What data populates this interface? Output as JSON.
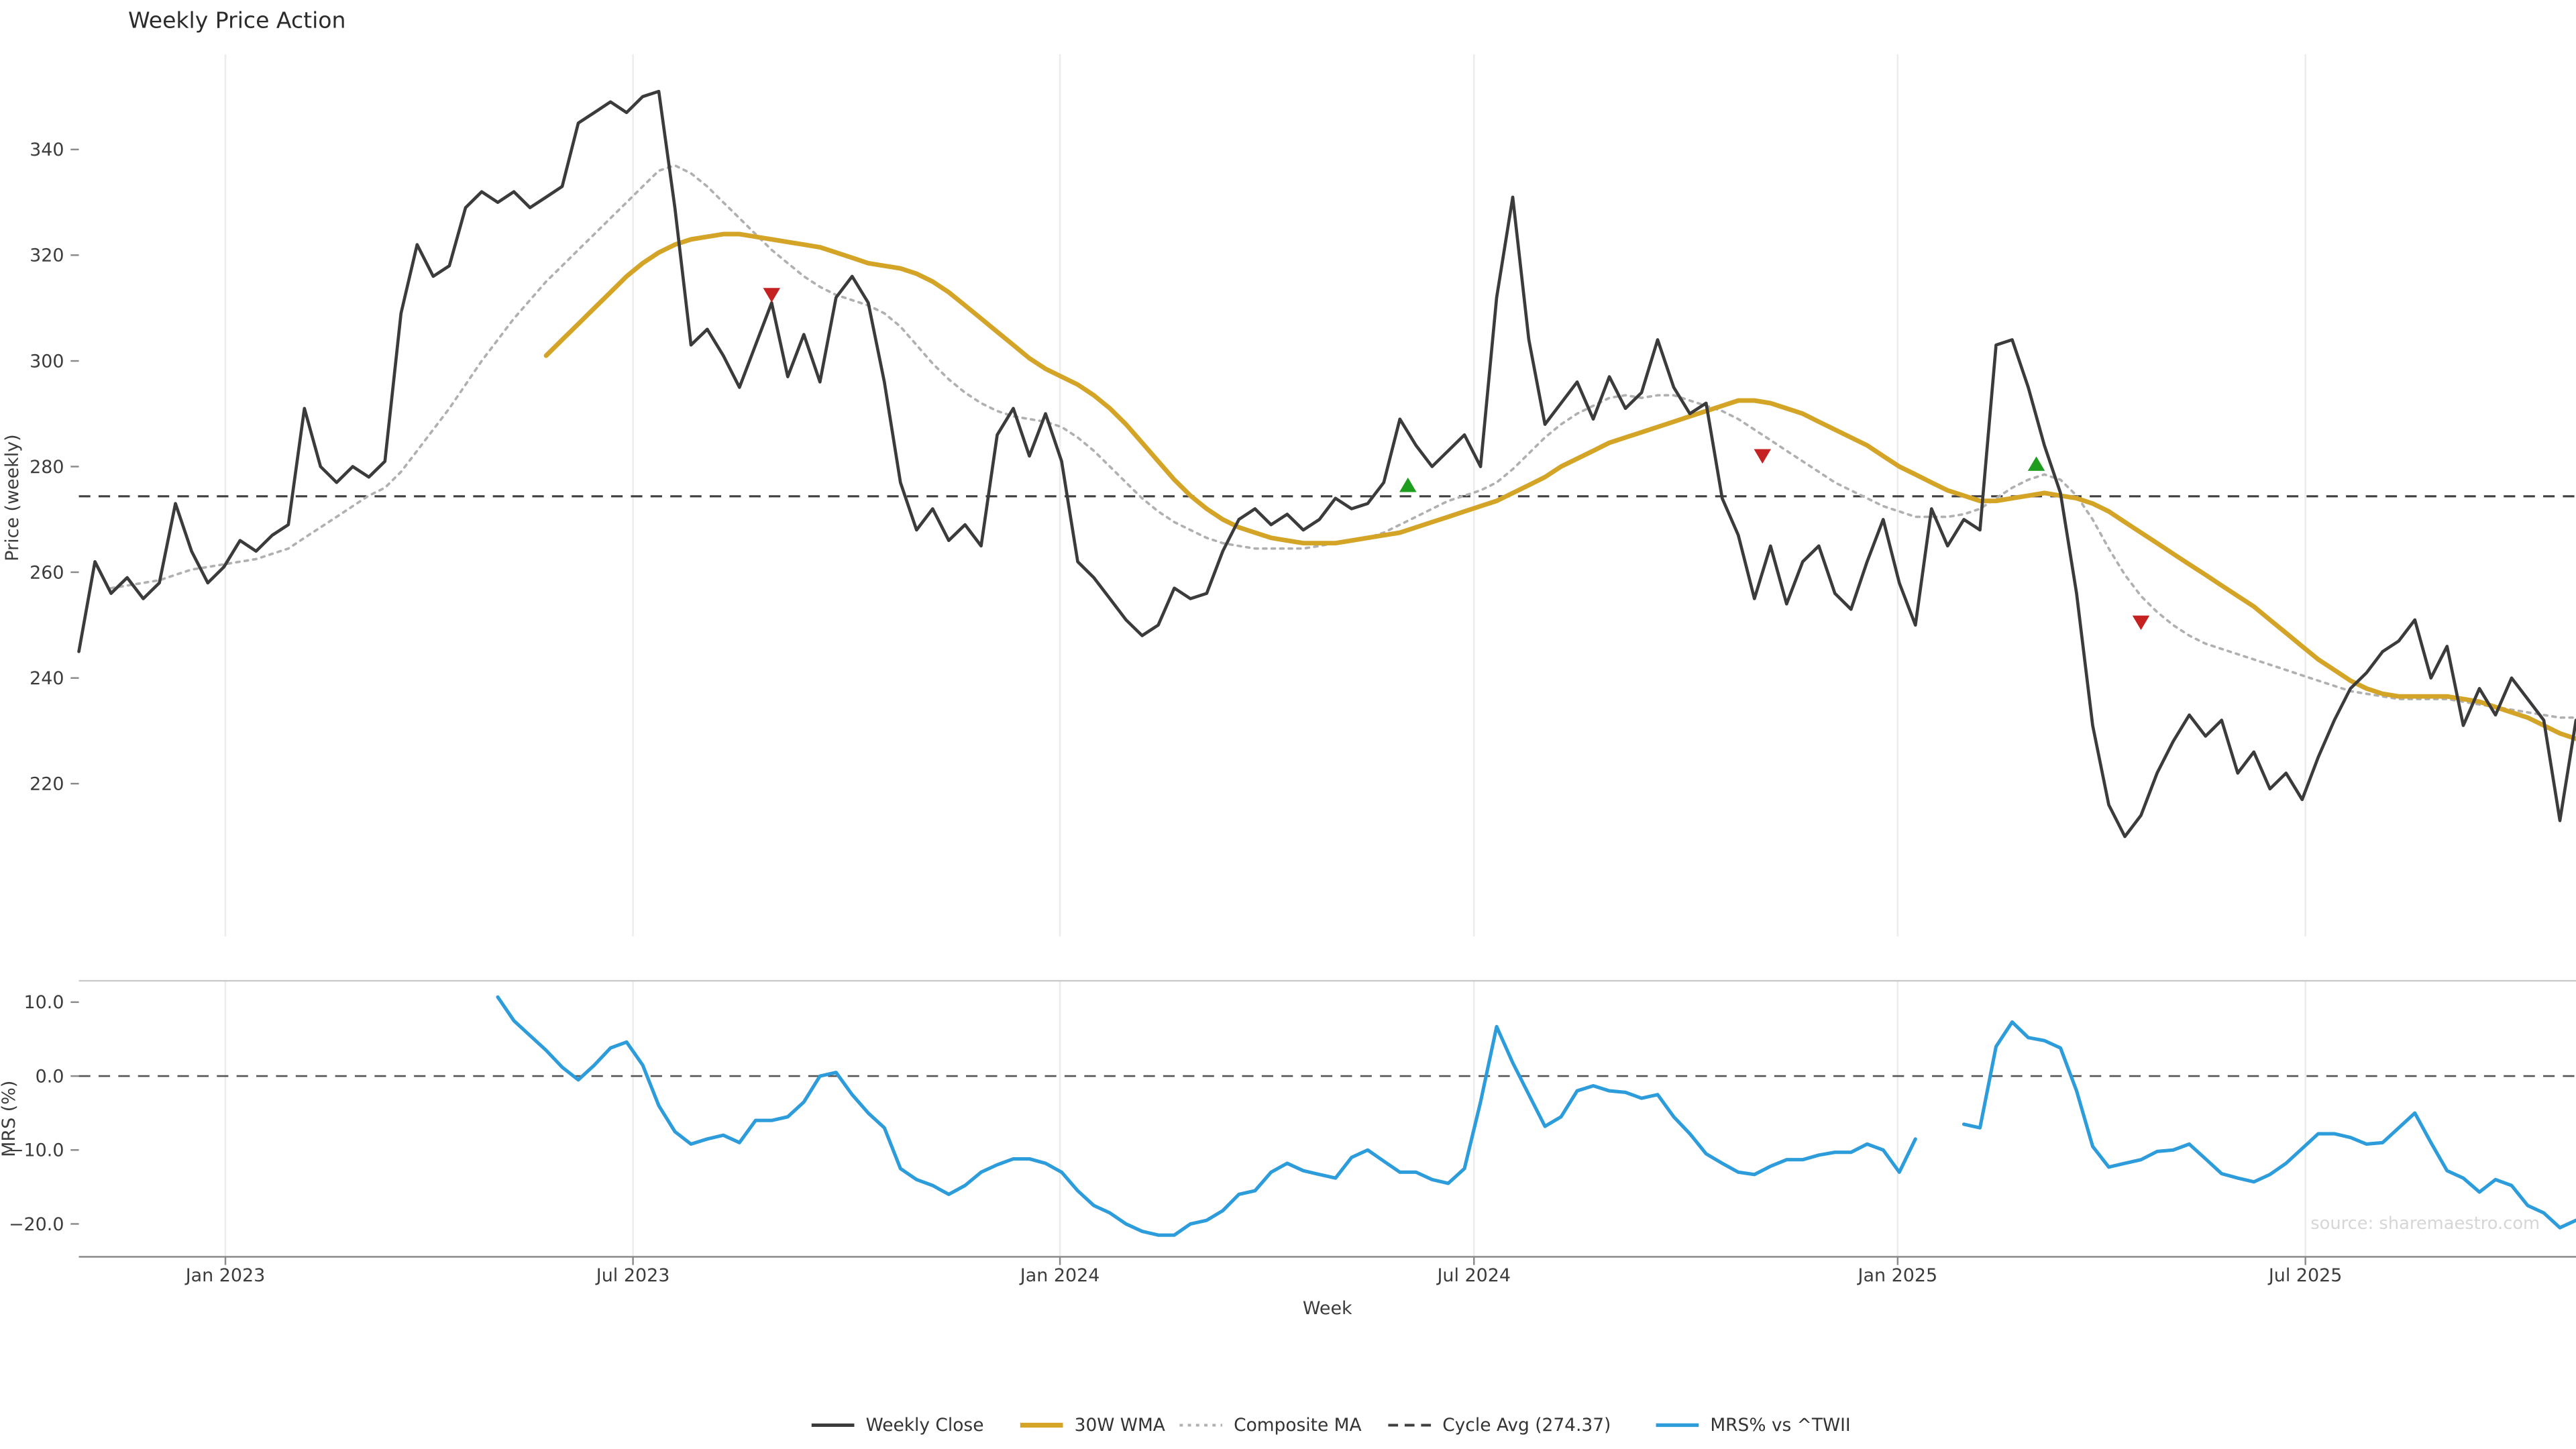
{
  "source_note": "source: sharemaestro.com",
  "colors": {
    "close": "#3b3b3b",
    "wma": "#d4a427",
    "composite": "#b0b0b0",
    "cycle_avg": "#3f3f3f",
    "mrs": "#2d9cdb",
    "buy": "#1f9d1f",
    "sell": "#c62121",
    "gridline": "#ececec",
    "axis_text": "#3c3c3c",
    "spine": "#c9c9c9",
    "axis_line": "#8a8a8a",
    "source": "#d6d6d6",
    "title": "#2b2b2b"
  },
  "legend": {
    "items": [
      {
        "id": "close",
        "label": "Weekly Close"
      },
      {
        "id": "wma",
        "label": "30W WMA"
      },
      {
        "id": "composite",
        "label": "Composite MA"
      },
      {
        "id": "cycle",
        "label": "Cycle Avg (274.37)"
      },
      {
        "id": "mrs",
        "label": "MRS% vs ^TWII"
      }
    ]
  },
  "chart_data": {
    "type": "line",
    "title": "Weekly Price Action",
    "xlabel": "Week",
    "ylabel_price": "Price (weekly)",
    "ylabel_mrs": "MRS (%)",
    "cycle_avg": 274.37,
    "ylim_price": [
      191,
      358
    ],
    "ylim_mrs": [
      -24.4,
      12.9
    ],
    "x_tick_weeks": [
      9.1,
      34.4,
      60.9,
      86.6,
      112.9,
      138.2
    ],
    "x_tick_labels": [
      "Jan 2023",
      "Jul 2023",
      "Jan 2024",
      "Jul 2024",
      "Jan 2025",
      "Jul 2025"
    ],
    "price_ticks": {
      "values": [
        340,
        320,
        300,
        280,
        260,
        240,
        220
      ],
      "labels": [
        "340",
        "320",
        "300",
        "280",
        "260",
        "240",
        "220"
      ]
    },
    "mrs_ticks": {
      "values": [
        10,
        0,
        -10,
        -20
      ],
      "labels": [
        "10.0",
        "0.0",
        "−10.0",
        "−20.0"
      ]
    },
    "series": [
      {
        "id": "close",
        "name": "Weekly Close",
        "panel": "price",
        "start_week": 0,
        "values": [
          245,
          262,
          256,
          259,
          255,
          258,
          273,
          264,
          258,
          261,
          266,
          264,
          267,
          269,
          291,
          280,
          277,
          280,
          278,
          281,
          309,
          322,
          316,
          318,
          329,
          332,
          330,
          332,
          329,
          331,
          333,
          345,
          347,
          349,
          347,
          350,
          351,
          329,
          303,
          306,
          301,
          295,
          303,
          311,
          297,
          305,
          296,
          312,
          316,
          311,
          296,
          277,
          268,
          272,
          266,
          269,
          265,
          286,
          291,
          282,
          290,
          281,
          262,
          259,
          255,
          251,
          248,
          250,
          257,
          255,
          256,
          264,
          270,
          272,
          269,
          271,
          268,
          270,
          274,
          272,
          273,
          277,
          289,
          284,
          280,
          283,
          286,
          280,
          312,
          331,
          304,
          288,
          292,
          296,
          289,
          297,
          291,
          294,
          304,
          295,
          290,
          292,
          274,
          267,
          255,
          265,
          254,
          262,
          265,
          256,
          253,
          262,
          270,
          258,
          250,
          272,
          265,
          270,
          268,
          303,
          304,
          295,
          284,
          275,
          256,
          231,
          216,
          210,
          214,
          222,
          228,
          233,
          229,
          232,
          222,
          226,
          219,
          222,
          217,
          225,
          232,
          238,
          241,
          245,
          247,
          251,
          240,
          246,
          231,
          238,
          233,
          240,
          236,
          232,
          213,
          232
        ]
      },
      {
        "id": "composite",
        "name": "Composite MA",
        "panel": "price",
        "start_week": 2,
        "values": [
          257,
          257.5,
          258,
          258.5,
          259.5,
          260.5,
          261,
          261.5,
          262,
          262.5,
          263.5,
          264.5,
          266.5,
          268.5,
          270.5,
          272.5,
          274.5,
          276,
          279,
          283,
          287,
          291,
          295.5,
          300,
          304,
          308,
          311.5,
          315,
          318,
          321,
          324,
          327,
          330,
          333,
          336,
          337,
          335.5,
          333,
          330,
          327,
          324,
          321,
          318.5,
          316,
          314,
          312.5,
          311.5,
          310.5,
          309,
          306.5,
          303,
          299.5,
          296.5,
          294,
          292,
          290.5,
          289.5,
          289,
          288.5,
          287.5,
          285.5,
          283,
          280,
          277,
          274,
          271.5,
          269.5,
          268,
          266.5,
          265.5,
          265,
          264.5,
          264.5,
          264.5,
          264.5,
          265,
          265.5,
          266,
          266.5,
          267.5,
          269,
          270.5,
          272,
          273.5,
          274.5,
          275.5,
          277,
          279.5,
          282.5,
          285.5,
          288,
          290,
          291.5,
          293,
          293.5,
          293,
          293.5,
          293.5,
          292.5,
          291.5,
          290.5,
          289,
          287,
          285,
          283,
          281,
          279,
          277,
          275.5,
          274,
          272.5,
          271.5,
          270.5,
          270.5,
          270.5,
          271,
          272,
          274,
          276,
          277.5,
          278.5,
          277.5,
          274.5,
          270,
          264.5,
          259.5,
          255.5,
          252.5,
          250,
          248,
          246.5,
          245.5,
          244.5,
          243.5,
          242.5,
          241.5,
          240.5,
          239.5,
          238.5,
          237.5,
          237,
          236.5,
          236,
          236,
          236,
          236,
          235.5,
          235,
          234.5,
          234,
          233.5,
          233,
          232.5,
          232.5
        ]
      },
      {
        "id": "wma",
        "name": "30W WMA",
        "panel": "price",
        "start_week": 29,
        "values": [
          301,
          304,
          307,
          310,
          313,
          316,
          318.5,
          320.5,
          322,
          323,
          323.5,
          324,
          324,
          323.5,
          323,
          322.5,
          322,
          321.5,
          320.5,
          319.5,
          318.5,
          318,
          317.5,
          316.5,
          315,
          313,
          310.5,
          308,
          305.5,
          303,
          300.5,
          298.5,
          297,
          295.5,
          293.5,
          291,
          288,
          284.5,
          281,
          277.5,
          274.5,
          272,
          270,
          268.5,
          267.5,
          266.5,
          266,
          265.5,
          265.5,
          265.5,
          266,
          266.5,
          267,
          267.5,
          268.5,
          269.5,
          270.5,
          271.5,
          272.5,
          273.5,
          275,
          276.5,
          278,
          280,
          281.5,
          283,
          284.5,
          285.5,
          286.5,
          287.5,
          288.5,
          289.5,
          290.5,
          291.5,
          292.5,
          292.5,
          292,
          291,
          290,
          288.5,
          287,
          285.5,
          284,
          282,
          280,
          278.5,
          277,
          275.5,
          274.5,
          273.5,
          273.5,
          274,
          274.5,
          275,
          274.5,
          274,
          273,
          271.5,
          269.5,
          267.5,
          265.5,
          263.5,
          261.5,
          259.5,
          257.5,
          255.5,
          253.5,
          251,
          248.5,
          246,
          243.5,
          241.5,
          239.5,
          238,
          237,
          236.5,
          236.5,
          236.5,
          236.5,
          236,
          235.5,
          234.5,
          233.5,
          232.5,
          231,
          229.5,
          228.5
        ]
      },
      {
        "id": "mrs",
        "name": "MRS% vs ^TWII",
        "panel": "mrs",
        "start_week": 26,
        "values": [
          10.7,
          7.5,
          5.5,
          3.5,
          1.2,
          -0.5,
          1.5,
          3.8,
          4.6,
          1.5,
          -4,
          -7.5,
          -9.2,
          -8.5,
          -8,
          -9,
          -6,
          -6,
          -5.5,
          -3.5,
          0,
          0.5,
          -2.5,
          -5,
          -7,
          -12.5,
          -14,
          -14.8,
          -16,
          -14.8,
          -13,
          -12,
          -11.2,
          -11.2,
          -11.8,
          -13,
          -15.5,
          -17.5,
          -18.5,
          -20,
          -21,
          -21.5,
          -21.5,
          -20,
          -19.5,
          -18.2,
          -16,
          -15.5,
          -13,
          -11.8,
          -12.8,
          -13.3,
          -13.8,
          -11,
          -10,
          -11.5,
          -13,
          -13,
          -14,
          -14.5,
          -12.5,
          -3.5,
          6.7,
          1.8,
          -2.5,
          -6.8,
          -5.5,
          -2,
          -1.3,
          -2,
          -2.2,
          -3,
          -2.5,
          -5.5,
          -7.8,
          -10.5,
          -11.8,
          -13,
          -13.3,
          -12.2,
          -11.3,
          -11.3,
          -10.7,
          -10.3,
          -10.3,
          -9.2,
          -10,
          -13,
          -8.5,
          null,
          null,
          -6.5,
          -7,
          4,
          7.3,
          5.2,
          4.8,
          3.8,
          -2,
          -9.5,
          -12.3,
          -11.8,
          -11.3,
          -10.2,
          -10,
          -9.2,
          -11.2,
          -13.2,
          -13.8,
          -14.3,
          -13.3,
          -11.8,
          -9.8,
          -7.8,
          -7.8,
          -8.3,
          -9.2,
          -9,
          -7,
          -5,
          -9,
          -12.8,
          -13.8,
          -15.7,
          -14,
          -14.8,
          -17.5,
          -18.5,
          -20.5,
          -19.5
        ]
      }
    ],
    "signals": {
      "sell": [
        {
          "week": 43,
          "price": 312.5
        },
        {
          "week": 104.5,
          "price": 282
        },
        {
          "week": 128,
          "price": 250.5
        }
      ],
      "buy": [
        {
          "week": 82.5,
          "price": 276.5
        },
        {
          "week": 121.5,
          "price": 280.5
        }
      ]
    }
  }
}
